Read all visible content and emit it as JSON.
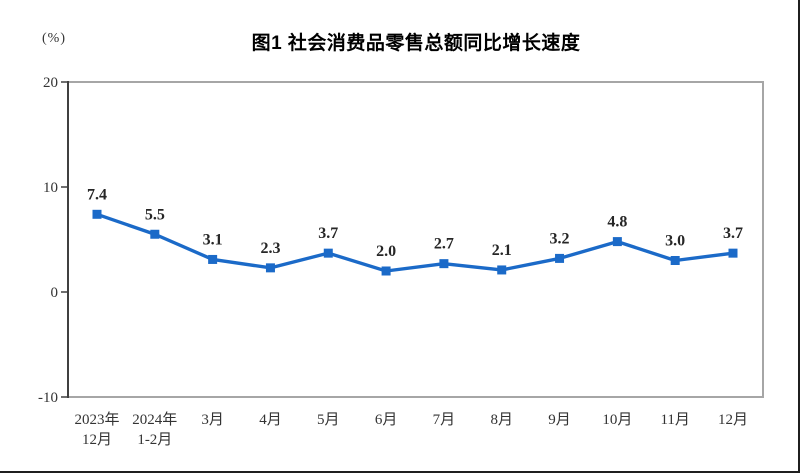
{
  "page": {
    "title": "图1  社会消费品零售总额同比增长速度",
    "unit_label": "(%)"
  },
  "chart_data": {
    "type": "line",
    "title": "图1 社会消费品零售总额同比增长速度",
    "ylabel": "(%)",
    "xlabel": "",
    "categories": [
      "2023年\n12月",
      "2024年\n1-2月",
      "3月",
      "4月",
      "5月",
      "6月",
      "7月",
      "8月",
      "9月",
      "10月",
      "11月",
      "12月"
    ],
    "values": [
      7.4,
      5.5,
      3.1,
      2.3,
      3.7,
      2.0,
      2.7,
      2.1,
      3.2,
      4.8,
      3.0,
      3.7
    ],
    "ylim": [
      -10,
      20
    ],
    "yticks": [
      20,
      10,
      0,
      -10
    ],
    "grid": false,
    "legend": "none",
    "marker": "square",
    "line_color": "#1b6ac8",
    "label_color": "#262626",
    "axis_color": "#404040",
    "frame_color": "#a6a6a6",
    "tick_label_color": "#333333"
  }
}
